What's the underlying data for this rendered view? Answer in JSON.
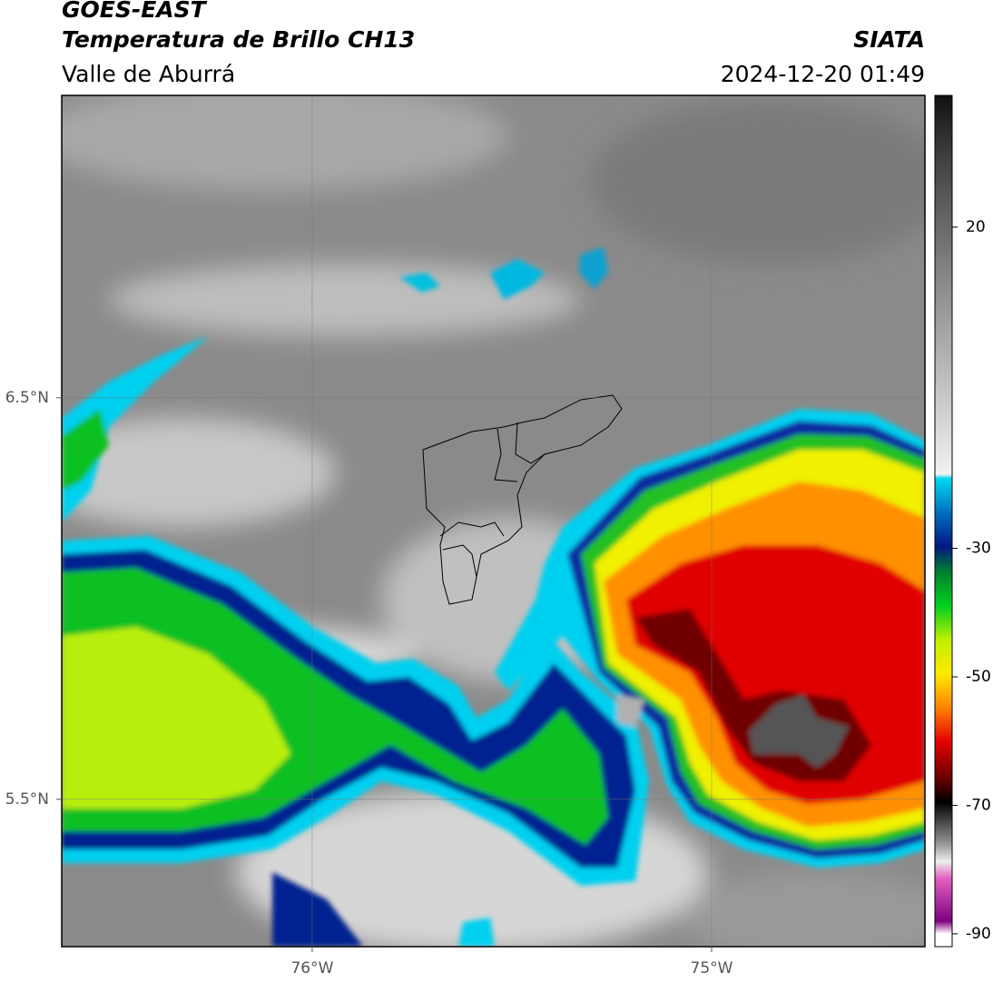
{
  "chart_data": {
    "type": "map",
    "title": "GOES-EAST",
    "subtitle": "Temperatura de Brillo CH13",
    "region": "Valle de Aburrá",
    "source": "SIATA",
    "timestamp": "2024-12-20 01:49",
    "xlim": [
      -76.627,
      -74.466
    ],
    "ylim": [
      5.133,
      7.253
    ],
    "xticks": [
      {
        "value": -76,
        "label": "76°W"
      },
      {
        "value": -75,
        "label": "75°W"
      }
    ],
    "yticks": [
      {
        "value": 6.5,
        "label": "6.5°N"
      },
      {
        "value": 5.5,
        "label": "5.5°N"
      }
    ],
    "grid": true,
    "colorbar": {
      "clim": [
        -92,
        40.5
      ],
      "ticks": [
        20,
        -30,
        -50,
        -70,
        -90
      ]
    }
  }
}
